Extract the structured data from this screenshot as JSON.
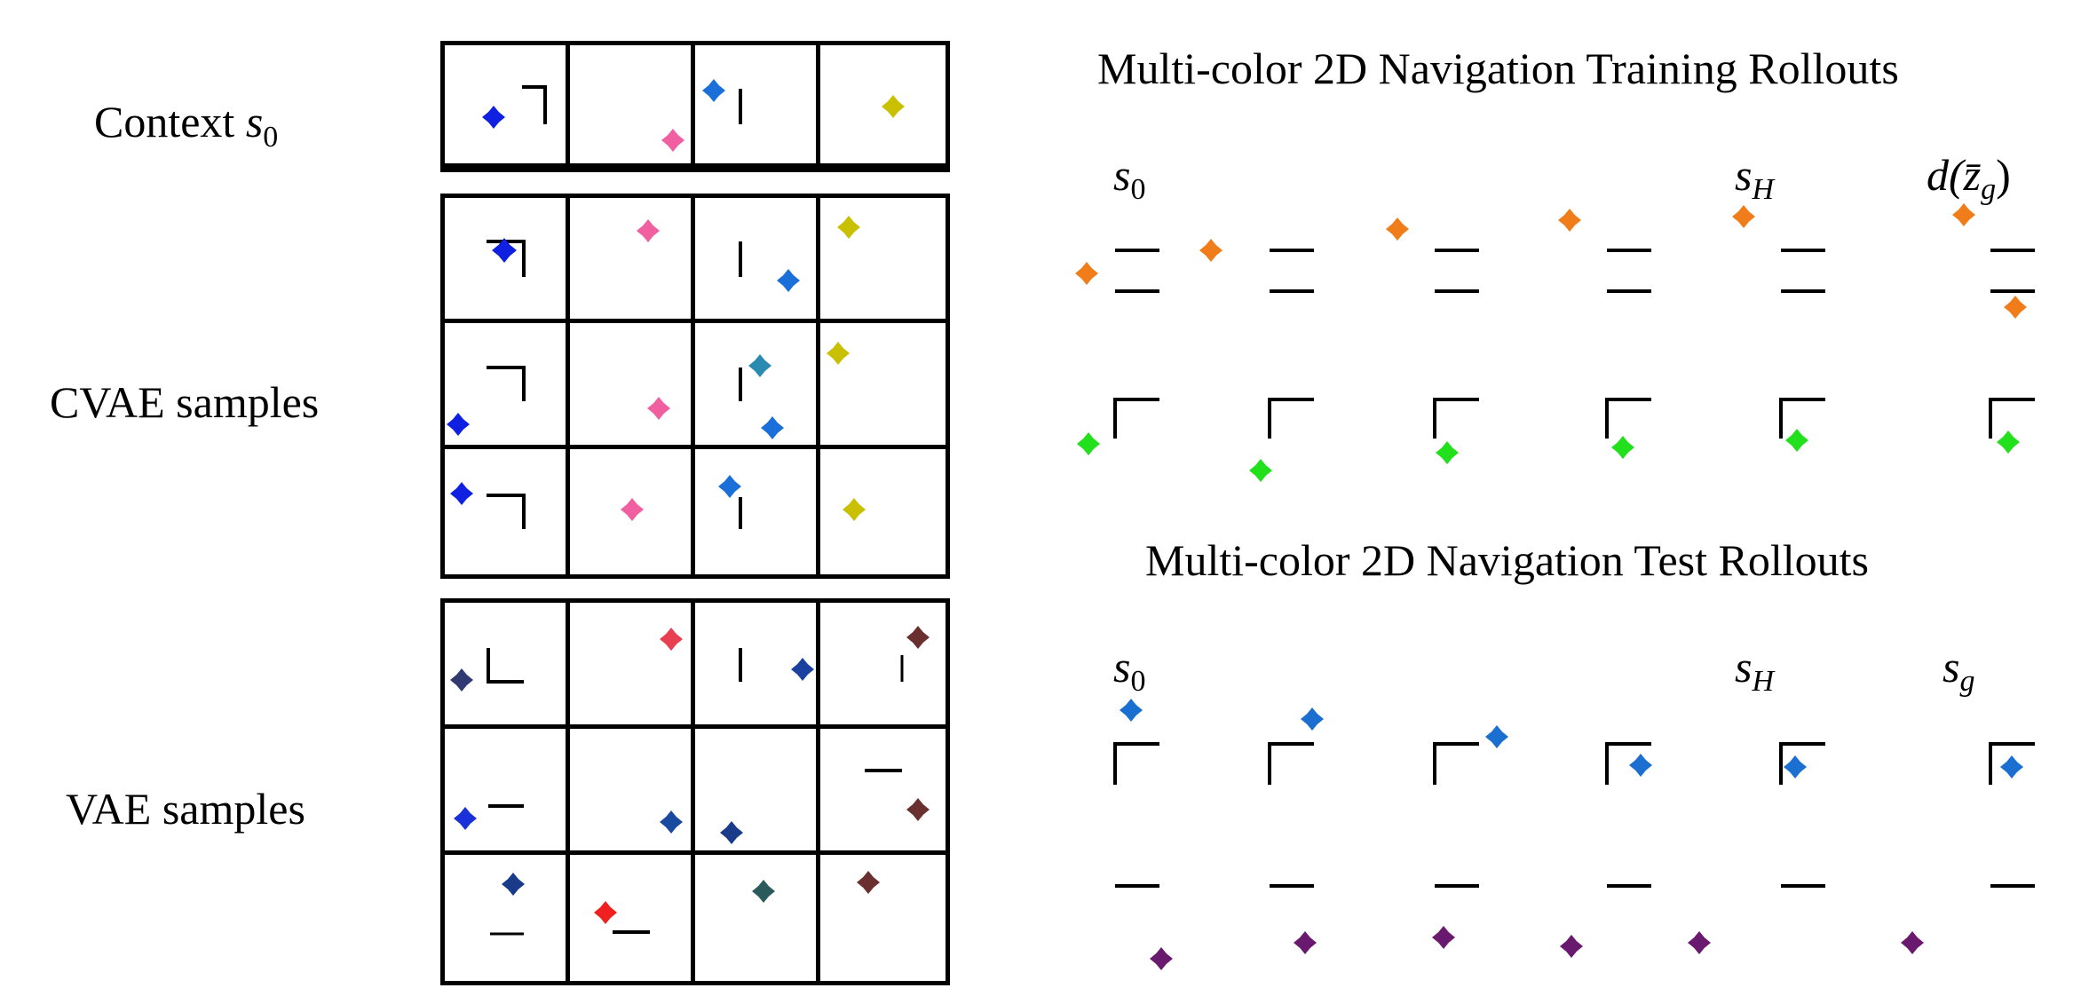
{
  "left_panel": {
    "rows": [
      {
        "label": "Context",
        "symbol": "s",
        "subscript": "0"
      },
      {
        "label": "CVAE samples"
      },
      {
        "label": "VAE samples"
      }
    ],
    "grid_columns": 4,
    "grid_rows": [
      1,
      3,
      3
    ]
  },
  "train_panel": {
    "title": "Multi-color 2D Navigation Training Rollouts",
    "col_labels": [
      {
        "symbol": "s",
        "subscript": "0"
      },
      {
        "symbol": "s",
        "subscript": "H"
      },
      {
        "symbol": "d(z̄",
        "subscript": "g",
        "suffix": ")"
      }
    ],
    "agent_colors": {
      "orange": "#f07d1a",
      "green": "#22e01c"
    }
  },
  "test_panel": {
    "title": "Multi-color 2D Navigation Test Rollouts",
    "col_labels": [
      {
        "symbol": "s",
        "subscript": "0"
      },
      {
        "symbol": "s",
        "subscript": "H"
      },
      {
        "symbol": "s",
        "subscript": "g"
      }
    ],
    "agent_colors": {
      "blue": "#1a6fd0",
      "purple": "#6a1a6e"
    }
  },
  "colors": {
    "blue": "#1020e0",
    "pink": "#f060a0",
    "light_blue": "#1a70d8",
    "yellow": "#c8c000",
    "navy": "#303a70",
    "red": "#f02020",
    "brown": "#6a3030",
    "line": "#000000"
  }
}
